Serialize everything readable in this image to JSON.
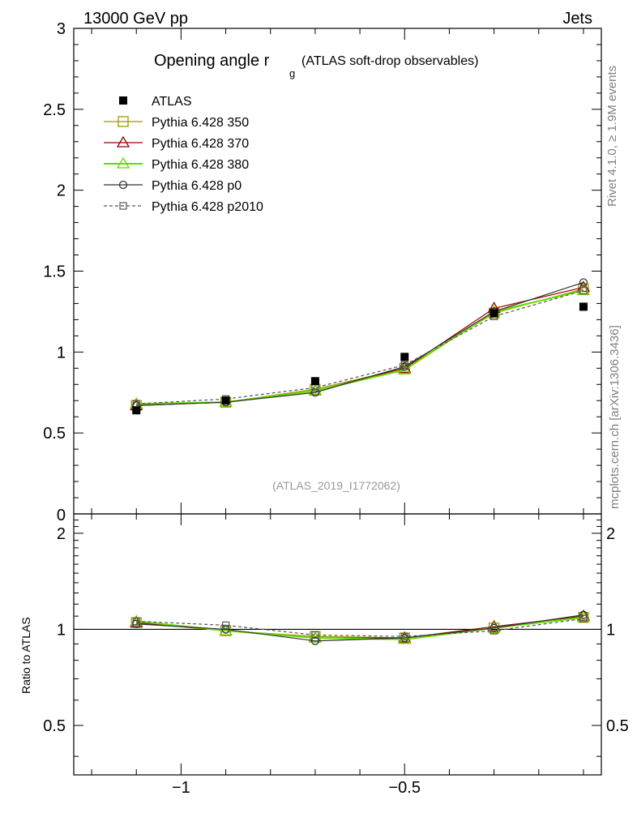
{
  "header": {
    "energy_label": "13000 GeV pp",
    "process_label": "Jets",
    "title_main": "Opening angle r",
    "title_sub": "g",
    "title_paren": "(ATLAS soft-drop observables)",
    "rivet_label": "Rivet 4.1.0, ≥ 1.9M events",
    "site_label": "mcplots.cern.ch [arXiv:1306.3436]",
    "analysis_label": "(ATLAS_2019_I1772062)",
    "ratio_ylabel": "Ratio to ATLAS"
  },
  "chart_data": {
    "type": "line",
    "x": [
      -1.1,
      -0.9,
      -0.7,
      -0.5,
      -0.3,
      -0.1
    ],
    "xlim": [
      -1.24,
      -0.06
    ],
    "main": {
      "ylim": [
        0,
        3
      ],
      "yticks": [
        0.5,
        1,
        1.5,
        2,
        2.5,
        3
      ],
      "ytick_labels": [
        "0.5",
        "1",
        "1.5",
        "2",
        "2.5",
        "3"
      ],
      "bottom_label": "0"
    },
    "ratio": {
      "ylim": [
        0.35,
        2.3
      ],
      "yticks": [
        0.5,
        1,
        2
      ],
      "ytick_labels": [
        "0.5",
        "1",
        "2"
      ]
    },
    "xticks": [
      -1.0,
      -0.5
    ],
    "xtick_labels": [
      "−1",
      "−0.5"
    ],
    "data": {
      "name": "ATLAS",
      "values": [
        0.64,
        0.7,
        0.82,
        0.97,
        1.24,
        1.28
      ]
    },
    "series": [
      {
        "name": "Pythia 6.428 350",
        "color": "#999900",
        "marker": "square",
        "dash": "",
        "width": 1.2,
        "values": [
          0.67,
          0.69,
          0.77,
          0.9,
          1.24,
          1.39
        ]
      },
      {
        "name": "Pythia 6.428 370",
        "color": "#990000",
        "marker": "triangle",
        "dash": "",
        "width": 1.2,
        "values": [
          0.67,
          0.69,
          0.76,
          0.9,
          1.27,
          1.4
        ]
      },
      {
        "name": "Pythia 6.428 380",
        "color": "#66dd00",
        "marker": "triangle",
        "dash": "",
        "width": 2,
        "values": [
          0.68,
          0.69,
          0.76,
          0.89,
          1.25,
          1.38
        ]
      },
      {
        "name": "Pythia 6.428 p0",
        "color": "#333333",
        "marker": "circle",
        "dash": "",
        "width": 1.2,
        "values": [
          0.67,
          0.69,
          0.75,
          0.91,
          1.25,
          1.43
        ]
      },
      {
        "name": "Pythia 6.428 p2010",
        "color": "#555555",
        "marker": "square-small",
        "dash": "4,3",
        "width": 1.2,
        "values": [
          0.68,
          0.71,
          0.78,
          0.92,
          1.22,
          1.38
        ]
      }
    ],
    "ratio_values": [
      [
        1.05,
        0.99,
        0.95,
        0.94,
        1.01,
        1.09
      ],
      [
        1.05,
        0.99,
        0.94,
        0.94,
        1.02,
        1.1
      ],
      [
        1.06,
        0.99,
        0.94,
        0.93,
        1.01,
        1.09
      ],
      [
        1.04,
        1.0,
        0.92,
        0.94,
        1.01,
        1.11
      ],
      [
        1.06,
        1.03,
        0.96,
        0.95,
        0.99,
        1.08
      ]
    ]
  }
}
